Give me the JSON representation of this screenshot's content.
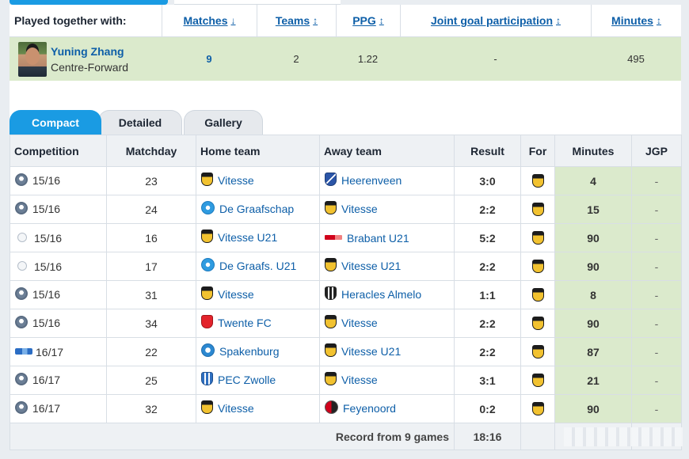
{
  "summary": {
    "header_label": "Played together with:",
    "columns": {
      "matches": "Matches",
      "teams": "Teams",
      "ppg": "PPG",
      "jgp": "Joint goal participation",
      "minutes": "Minutes"
    },
    "arrows": {
      "sort_down": "↓",
      "sort_both": "↕"
    },
    "player": {
      "name": "Yuning Zhang",
      "position": "Centre-Forward",
      "matches": "9",
      "teams": "2",
      "ppg": "1.22",
      "jgp": "-",
      "minutes": "495"
    }
  },
  "tabs": [
    "Compact",
    "Detailed",
    "Gallery"
  ],
  "table": {
    "headers": {
      "competition": "Competition",
      "matchday": "Matchday",
      "home": "Home team",
      "away": "Away team",
      "result": "Result",
      "for": "For",
      "minutes": "Minutes",
      "jgp": "JGP"
    },
    "rows": [
      {
        "season": "15/16",
        "matchday": "23",
        "home": "Vitesse",
        "away": "Heerenveen",
        "result": "3:0",
        "minutes": "4",
        "jgp": "-"
      },
      {
        "season": "15/16",
        "matchday": "24",
        "home": "De Graafschap",
        "away": "Vitesse",
        "result": "2:2",
        "minutes": "15",
        "jgp": "-"
      },
      {
        "season": "15/16",
        "matchday": "16",
        "home": "Vitesse U21",
        "away": "Brabant U21",
        "result": "5:2",
        "minutes": "90",
        "jgp": "-"
      },
      {
        "season": "15/16",
        "matchday": "17",
        "home": "De Graafs. U21",
        "away": "Vitesse U21",
        "result": "2:2",
        "minutes": "90",
        "jgp": "-"
      },
      {
        "season": "15/16",
        "matchday": "31",
        "home": "Vitesse",
        "away": "Heracles Almelo",
        "result": "1:1",
        "minutes": "8",
        "jgp": "-"
      },
      {
        "season": "15/16",
        "matchday": "34",
        "home": "Twente FC",
        "away": "Vitesse",
        "result": "2:2",
        "minutes": "90",
        "jgp": "-"
      },
      {
        "season": "16/17",
        "matchday": "22",
        "home": "Spakenburg",
        "away": "Vitesse U21",
        "result": "2:2",
        "minutes": "87",
        "jgp": "-"
      },
      {
        "season": "16/17",
        "matchday": "25",
        "home": "PEC Zwolle",
        "away": "Vitesse",
        "result": "3:1",
        "minutes": "21",
        "jgp": "-"
      },
      {
        "season": "16/17",
        "matchday": "32",
        "home": "Vitesse",
        "away": "Feyenoord",
        "result": "0:2",
        "minutes": "90",
        "jgp": "-"
      }
    ],
    "footer": {
      "label": "Record from 9 games",
      "goals": "18:16"
    }
  }
}
